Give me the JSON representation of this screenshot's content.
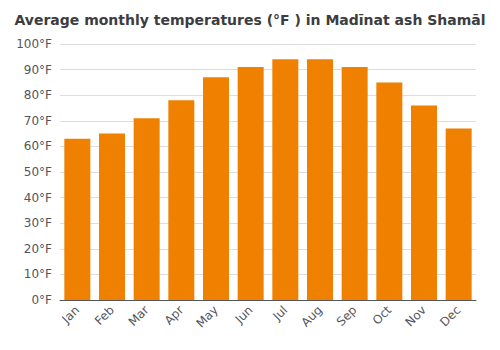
{
  "chart_data": {
    "type": "bar",
    "title": "Average monthly temperatures (°F ) in Madīnat ash Shamāl",
    "categories": [
      "Jan",
      "Feb",
      "Mar",
      "Apr",
      "May",
      "Jun",
      "Jul",
      "Aug",
      "Sep",
      "Oct",
      "Nov",
      "Dec"
    ],
    "values": [
      63,
      65,
      71,
      78,
      87,
      91,
      94,
      94,
      91,
      85,
      76,
      67
    ],
    "color": "#F08000",
    "ylim": [
      0,
      100
    ],
    "yticks": [
      {
        "value": 0,
        "label": "0°F"
      },
      {
        "value": 10,
        "label": "10°F"
      },
      {
        "value": 20,
        "label": "20°F"
      },
      {
        "value": 30,
        "label": "30°F"
      },
      {
        "value": 40,
        "label": "40°F"
      },
      {
        "value": 50,
        "label": "50°F"
      },
      {
        "value": 60,
        "label": "60°F"
      },
      {
        "value": 70,
        "label": "70°F"
      },
      {
        "value": 80,
        "label": "80°F"
      },
      {
        "value": 90,
        "label": "90°F"
      },
      {
        "value": 100,
        "label": "100°F"
      }
    ],
    "grid": true
  }
}
